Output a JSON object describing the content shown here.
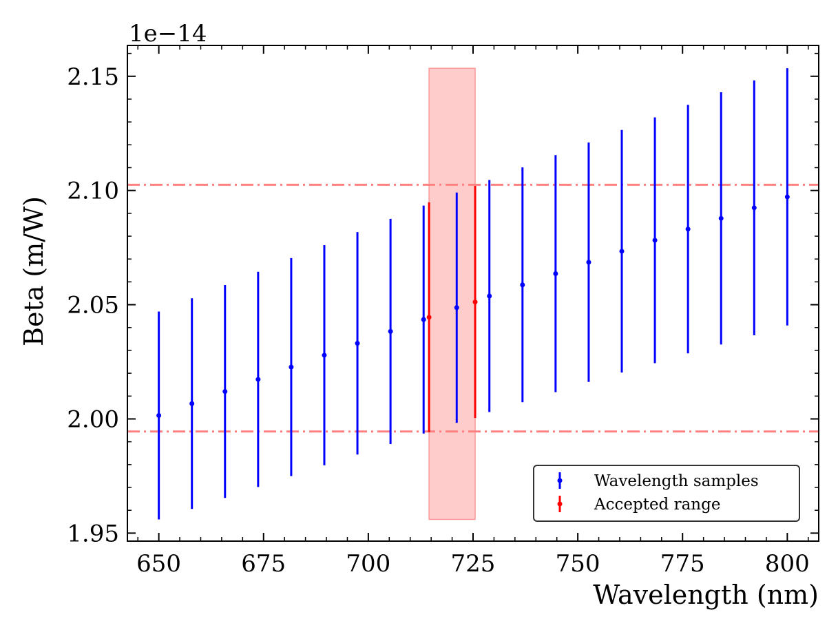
{
  "chart_data": {
    "type": "errorbar",
    "xlabel": "Wavelength (nm)",
    "ylabel": "Beta (m/W)",
    "y_offset_text": "1e−14",
    "y_scale_factor": 1e-14,
    "xlim": [
      642.5,
      807.5
    ],
    "ylim": [
      1.9465,
      2.1635
    ],
    "x_ticks": [
      650,
      675,
      700,
      725,
      750,
      775,
      800
    ],
    "x_tick_labels": [
      "650",
      "675",
      "700",
      "725",
      "750",
      "775",
      "800"
    ],
    "y_ticks": [
      1.95,
      2.0,
      2.05,
      2.1,
      2.15
    ],
    "y_tick_labels": [
      "1.95",
      "2.00",
      "2.05",
      "2.10",
      "2.15"
    ],
    "series": [
      {
        "name": "Wavelength samples",
        "color": "#0000ff",
        "x": [
          650.0,
          657.9,
          665.8,
          673.7,
          681.6,
          689.5,
          697.4,
          705.3,
          713.2,
          721.1,
          728.9,
          736.8,
          744.7,
          752.6,
          760.5,
          768.4,
          776.3,
          784.2,
          792.1,
          800.0
        ],
        "y": [
          2.0015,
          2.0067,
          2.012,
          2.0173,
          2.0227,
          2.0279,
          2.0331,
          2.0383,
          2.0435,
          2.0487,
          2.0538,
          2.0587,
          2.0636,
          2.0686,
          2.0734,
          2.0782,
          2.0831,
          2.0878,
          2.0924,
          2.0972
        ],
        "yerr": [
          0.0455,
          0.0461,
          0.0466,
          0.0471,
          0.0477,
          0.0482,
          0.0487,
          0.0493,
          0.0499,
          0.0504,
          0.0508,
          0.0514,
          0.0519,
          0.0524,
          0.0531,
          0.0538,
          0.0544,
          0.0552,
          0.0558,
          0.0563
        ]
      },
      {
        "name": "Accepted range",
        "color": "#ff0000",
        "x": [
          714.5,
          725.5
        ],
        "y": [
          2.0445,
          2.0512
        ],
        "yerr": [
          0.0503,
          0.0508
        ]
      }
    ],
    "hlines": [
      {
        "y": 2.1025,
        "color": "#ff8080",
        "style": "dashdot"
      },
      {
        "y": 1.9945,
        "color": "#ff8080",
        "style": "dashdot"
      }
    ],
    "shaded_region": {
      "x": [
        714.5,
        725.5
      ],
      "y": [
        1.956,
        2.1535
      ],
      "color": "#ffcccc",
      "edge_color": "#ff9999"
    },
    "legend": {
      "location": "lower right"
    },
    "grid": false
  }
}
